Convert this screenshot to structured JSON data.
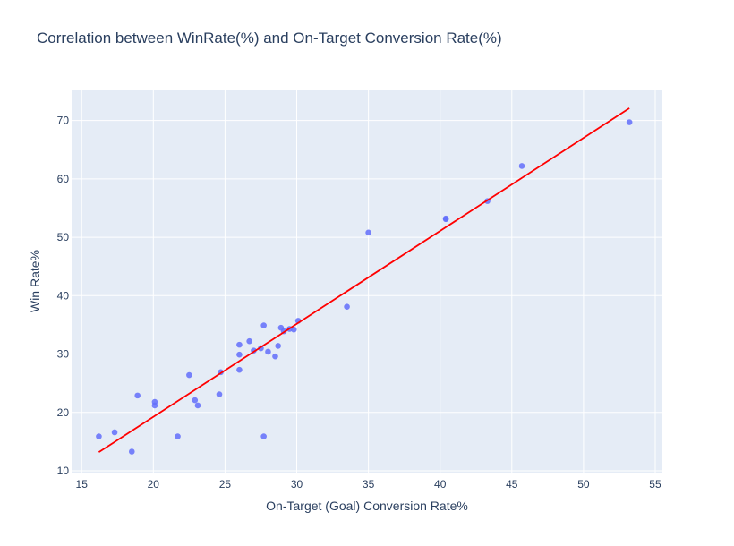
{
  "chart_data": {
    "type": "scatter",
    "title": "Correlation between WinRate(%) and On-Target Conversion Rate(%)",
    "xlabel": "On-Target (Goal) Conversion Rate%",
    "ylabel": "Win Rate%",
    "xlim": [
      14.3,
      55.5
    ],
    "ylim": [
      9.7,
      75.3
    ],
    "xticks": [
      15,
      20,
      25,
      30,
      35,
      40,
      45,
      50,
      55
    ],
    "yticks": [
      10,
      20,
      30,
      40,
      50,
      60,
      70
    ],
    "grid": true,
    "background": "#e5ecf6",
    "point_color": "#636efa",
    "trend_color": "#ff0000",
    "points": [
      [
        16.2,
        15.9
      ],
      [
        17.3,
        16.6
      ],
      [
        18.5,
        13.3
      ],
      [
        18.9,
        22.9
      ],
      [
        20.1,
        21.8
      ],
      [
        20.1,
        21.2
      ],
      [
        21.7,
        15.9
      ],
      [
        22.5,
        26.4
      ],
      [
        22.9,
        22.1
      ],
      [
        23.1,
        21.2
      ],
      [
        24.6,
        23.1
      ],
      [
        24.7,
        26.9
      ],
      [
        26.0,
        31.6
      ],
      [
        26.0,
        29.9
      ],
      [
        26.0,
        27.3
      ],
      [
        26.7,
        32.2
      ],
      [
        27.0,
        30.6
      ],
      [
        27.5,
        31.0
      ],
      [
        27.7,
        34.9
      ],
      [
        27.7,
        15.9
      ],
      [
        28.0,
        30.4
      ],
      [
        28.5,
        29.6
      ],
      [
        28.7,
        31.4
      ],
      [
        28.9,
        34.5
      ],
      [
        29.1,
        33.9
      ],
      [
        29.5,
        34.3
      ],
      [
        29.8,
        34.2
      ],
      [
        30.1,
        35.7
      ],
      [
        33.5,
        38.1
      ],
      [
        35.0,
        50.8
      ],
      [
        40.4,
        53.2
      ],
      [
        40.4,
        53.1
      ],
      [
        43.3,
        56.2
      ],
      [
        45.7,
        62.2
      ],
      [
        53.2,
        69.7
      ]
    ],
    "trend_line": [
      [
        16.2,
        13.2
      ],
      [
        53.2,
        72.1
      ]
    ]
  }
}
